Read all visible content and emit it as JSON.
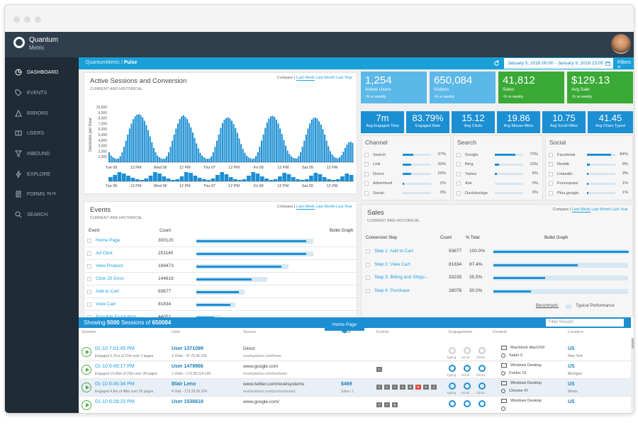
{
  "app": {
    "logo_line1": "Quantum",
    "logo_line2": "Metric"
  },
  "sidebar": {
    "items": [
      {
        "label": "DASHBOARD",
        "icon": "pie-chart-icon"
      },
      {
        "label": "EVENTS",
        "icon": "tag-icon"
      },
      {
        "label": "ERRORS",
        "icon": "warning-icon"
      },
      {
        "label": "USERS",
        "icon": "users-icon"
      },
      {
        "label": "INBOUND",
        "icon": "funnel-icon"
      },
      {
        "label": "EXPLORE",
        "icon": "lightning-icon"
      },
      {
        "label": "FORMS",
        "icon": "forms-icon",
        "badge": "BETA"
      },
      {
        "label": "SEARCH",
        "icon": "search-icon"
      }
    ]
  },
  "breadcrumb": {
    "root": "QuantumMetric",
    "sep": " / ",
    "current": "Pulse"
  },
  "date_range": "January 5, 2016 00:00 - January 9, 2016 23:00",
  "filters_label": "Filters",
  "compare": {
    "label": "Compare",
    "sep": " | ",
    "week": "Last Week",
    "month": "Last Month",
    "year": "Last Year"
  },
  "active_sessions": {
    "title": "Active Sessions and Conversion",
    "subtitle": "CURRENT AND HISTORICAL"
  },
  "chart_data": {
    "type": "bar",
    "ylabel": "Sessions per hour",
    "yticks": [
      "10,000",
      "9,000",
      "8,000",
      "7,000",
      "6,000",
      "5,000",
      "4,000",
      "3,000",
      "2,000",
      "1,000"
    ],
    "ylim": [
      0,
      10000
    ],
    "xticks": [
      "Tue 05",
      "12 PM",
      "Wed 06",
      "12 PM",
      "Thu 07",
      "12 PM",
      "Fri 08",
      "12 PM",
      "Sat 09",
      "12 PM"
    ],
    "series": [
      {
        "values": [
          1800,
          1200,
          900,
          700,
          600,
          700,
          1100,
          1800,
          2800,
          3900,
          5000,
          6100,
          7000,
          7800,
          8300,
          8600,
          8700,
          8500,
          8100,
          7500,
          6700,
          5800,
          4700,
          3600,
          2600,
          1800,
          1200,
          900,
          700,
          600,
          700,
          1100,
          1800,
          2800,
          3900,
          5000,
          6100,
          7000,
          7800,
          8300,
          8500,
          8200,
          7800,
          7100,
          6300,
          5400,
          4400,
          3400,
          2500,
          1700,
          1200,
          900,
          700,
          600,
          700,
          1100,
          1800,
          2800,
          3900,
          5000,
          6200,
          7100,
          7700,
          8000,
          8100,
          7900,
          7500,
          6900,
          6200,
          5300,
          4300,
          3300,
          2400,
          1700,
          1200,
          900,
          700,
          600,
          700,
          1100,
          1800,
          2800,
          3900,
          5000,
          6200,
          7200,
          7900,
          8300,
          8400,
          8200,
          7700,
          7000,
          6100,
          5100,
          4000,
          3000,
          2100,
          1500,
          1100,
          800,
          700,
          700,
          1100,
          1800,
          2800,
          3900,
          5000,
          6100,
          7000,
          7700,
          8000,
          8100,
          7900,
          7400,
          6800,
          6000,
          5000,
          3900,
          2900,
          2000,
          1400,
          1000,
          800,
          700,
          900,
          1300,
          1900,
          2600,
          3200,
          3600,
          3700,
          3500
        ]
      }
    ],
    "brush": {
      "values": [
        600,
        900,
        1300,
        1100,
        800,
        500,
        300,
        200,
        400,
        800,
        1300,
        1100,
        700,
        400,
        200,
        300,
        700,
        1300,
        1200,
        800,
        500,
        300,
        200,
        400,
        900,
        1300,
        1000,
        600,
        300,
        200,
        300,
        800,
        1300,
        1100,
        700,
        400,
        200,
        300,
        700,
        1200,
        1000,
        600,
        300,
        200,
        300,
        800,
        1200,
        1000,
        600,
        300,
        200,
        300,
        700,
        1100,
        900
      ]
    },
    "brush_xticks": [
      "Tue 05",
      "12 PM",
      "Wed 06",
      "12 PM",
      "Thu 07",
      "12 PM",
      "Fri 08",
      "12 PM",
      "Sat 09",
      "12 PM"
    ]
  },
  "kpis": [
    {
      "value": "1,254",
      "label": "Active Users",
      "sub": "-% vs weekly",
      "color": "#5cb8e8"
    },
    {
      "value": "650,084",
      "label": "Visitors",
      "sub": "-% vs weekly",
      "color": "#5cb8e8"
    },
    {
      "value": "41,812",
      "label": "Sales",
      "sub": "-% vs weekly",
      "color": "#3aa935"
    },
    {
      "value": "$129.13",
      "label": "Avg Sale",
      "sub": "-% vs weekly",
      "color": "#3aa935"
    }
  ],
  "kpis_small": [
    {
      "value": "7m",
      "label": "Avg Engaged Time"
    },
    {
      "value": "83.79%",
      "label": "Engaged Rate"
    },
    {
      "value": "15.12",
      "label": "Avg Clicks"
    },
    {
      "value": "19.86",
      "label": "Avg Mouse Miles"
    },
    {
      "value": "10.75",
      "label": "Avg Scroll Miles"
    },
    {
      "value": "41.45",
      "label": "Avg Chars Typed"
    }
  ],
  "channel": {
    "title": "Channel",
    "rows": [
      {
        "label": "Search",
        "pct": "37%",
        "v": 0.37
      },
      {
        "label": "Link",
        "pct": "30%",
        "v": 0.3
      },
      {
        "label": "Direct",
        "pct": "29%",
        "v": 0.29
      },
      {
        "label": "Advertised",
        "pct": "2%",
        "v": 0.02
      },
      {
        "label": "Social",
        "pct": "0%",
        "v": 0.0
      }
    ]
  },
  "search": {
    "title": "Search",
    "rows": [
      {
        "label": "Google",
        "pct": "73%",
        "v": 0.73
      },
      {
        "label": "Bing",
        "pct": "16%",
        "v": 0.16
      },
      {
        "label": "Yahoo",
        "pct": "8%",
        "v": 0.08
      },
      {
        "label": "Ask",
        "pct": "0%",
        "v": 0.0
      },
      {
        "label": "Duckduckgo",
        "pct": "0%",
        "v": 0.0
      }
    ]
  },
  "social": {
    "title": "Social",
    "rows": [
      {
        "label": "Facebook",
        "pct": "84%",
        "v": 0.84
      },
      {
        "label": "Reddit",
        "pct": "9%",
        "v": 0.09
      },
      {
        "label": "Linkedin",
        "pct": "3%",
        "v": 0.03
      },
      {
        "label": "Foursquare",
        "pct": "1%",
        "v": 0.01
      },
      {
        "label": "Plus.google",
        "pct": "1%",
        "v": 0.01
      }
    ]
  },
  "events": {
    "title": "Events",
    "subtitle": "CURRENT AND HISTORICAL",
    "col_event": "Event",
    "col_count": "Count",
    "col_graph": "Bullet Graph",
    "rows": [
      {
        "label": "Home Page",
        "count": "300120",
        "v": 0.62,
        "t": 0.66
      },
      {
        "label": "Ad Click",
        "count": "251140",
        "v": 0.62,
        "t": 0.66
      },
      {
        "label": "View Product",
        "count": "189473",
        "v": 0.48,
        "t": 0.52
      },
      {
        "label": "Click JS Error",
        "count": "144618",
        "v": 0.31,
        "t": 0.4
      },
      {
        "label": "Add to Cart",
        "count": "93677",
        "v": 0.24,
        "t": 0.27
      },
      {
        "label": "View Cart",
        "count": "81834",
        "v": 0.19,
        "t": 0.22
      },
      {
        "label": "Possible Frustration",
        "count": "44051",
        "v": 0.1,
        "t": 0.14
      }
    ]
  },
  "sales": {
    "title": "Sales",
    "subtitle": "CURRENT AND HISTORICAL",
    "col_step": "Conversion Step",
    "col_count": "Count",
    "col_total": "% Total",
    "col_graph": "Bullet Graph",
    "rows": [
      {
        "label": "Step 1: Add to Cart",
        "count": "93677",
        "pct": "100.0%",
        "v": 0.58,
        "t": 0.52
      },
      {
        "label": "Step 2: View Cart",
        "count": "81834",
        "pct": "87.4%",
        "v": 0.36,
        "t": 0.44
      },
      {
        "label": "Step 3: Billing and Shipp...",
        "count": "33235",
        "pct": "35.5%",
        "v": 0.22,
        "t": 0.2
      },
      {
        "label": "Step 4: Purchase",
        "count": "28078",
        "pct": "30.0%",
        "v": 0.16,
        "t": 0.18
      }
    ],
    "benchmark": "Benchmark:",
    "typical": "Typical Performance"
  },
  "sessions": {
    "showing_prefix": "Showing",
    "count": "5000",
    "mid": "Sessions of",
    "total": "650084",
    "filter_placeholder": "Filter Results",
    "headers": [
      "Session",
      "User",
      "Source",
      "Value",
      "Events",
      "Engagement",
      "Context",
      "Location"
    ],
    "rows": [
      {
        "time": "01-10 7:01:45 PM",
        "sub": "Engaged 2.21m of 22m over 2 pages",
        "user": "User 1371099",
        "visits": "3 Visits - 47.76.56.156",
        "source": "Direct",
        "source2": "revelsystems.com/home",
        "value": "",
        "value2": "",
        "os": "Macintosh MacOSX",
        "browser": "Safari 9",
        "loc": "US",
        "loc2": "New York",
        "eng": "grey"
      },
      {
        "time": "01-10 6:49:17 PM",
        "sub": "Engaged 19.99m of 25m over 28 pages",
        "user": "User 1479966",
        "visits": "1 Visits - 173.28.214.135",
        "source": "www.google.com",
        "source2": "revelsystems.com/hardware",
        "value": "",
        "value2": "",
        "os": "Windows Desktop",
        "browser": "Firefox 10",
        "loc": "US",
        "loc2": "Michigan",
        "eng": "blue"
      },
      {
        "time": "01-10 6:46:34 PM",
        "sub": "Engaged 4.8m of 48m over 26 pages",
        "user": "Blair Leno",
        "visits": "4 Visit - 173.29.26.204",
        "source": "www.twitter.com/revelsystems",
        "source2": "revelsystems.com/pos/restaurant",
        "value": "$469",
        "value2": "Sales: 2",
        "os": "Windows Desktop",
        "browser": "Chrome 47",
        "loc": "US",
        "loc2": "Illinois",
        "eng": "blue"
      },
      {
        "time": "01-10 6:26:23 PM",
        "sub": "",
        "user": "User 1536618",
        "visits": "",
        "source": "www.google.com/",
        "source2": "",
        "value": "",
        "value2": "",
        "os": "Windows Desktop",
        "browser": "",
        "loc": "US",
        "loc2": "",
        "eng": "blue"
      }
    ],
    "eng_labels": [
      "Typing",
      "Scroll",
      "Clicks"
    ],
    "tooltip": "Home Page",
    "event_badges": {
      "row2": [
        "V"
      ],
      "row3": [
        "V",
        "A",
        "?",
        "V",
        "B",
        "R",
        "P",
        "2"
      ],
      "row4": [
        "V",
        "A",
        "B"
      ]
    }
  }
}
